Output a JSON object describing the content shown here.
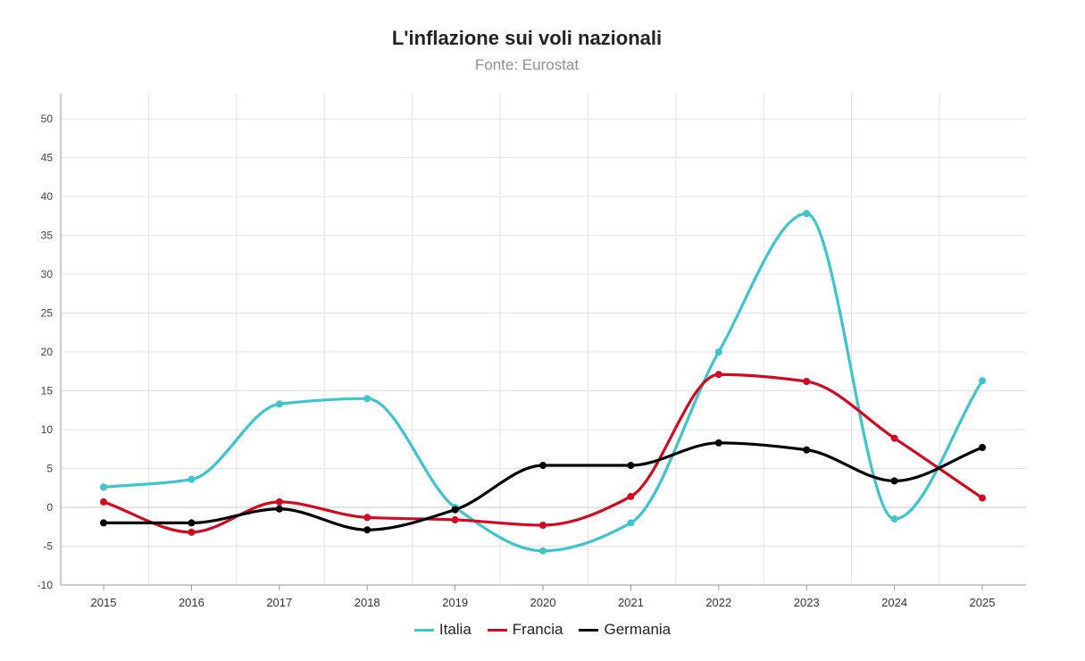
{
  "chart_data": {
    "type": "line",
    "title": "L'inflazione sui voli nazionali",
    "subtitle": "Fonte: Eurostat",
    "categories": [
      "2015",
      "2016",
      "2017",
      "2018",
      "2019",
      "2020",
      "2021",
      "2022",
      "2023",
      "2024",
      "2025"
    ],
    "ylim": [
      -10,
      50
    ],
    "yticks": [
      -10,
      -5,
      0,
      5,
      10,
      15,
      20,
      25,
      30,
      35,
      40,
      45,
      50
    ],
    "grid": true,
    "legend_position": "bottom",
    "series": [
      {
        "name": "Italia",
        "color": "#3cc6cc",
        "values": [
          2.6,
          3.6,
          13.3,
          14.0,
          0.0,
          -5.6,
          -2.0,
          20.0,
          37.8,
          -1.5,
          16.3
        ]
      },
      {
        "name": "Francia",
        "color": "#d10a22",
        "values": [
          0.7,
          -3.2,
          0.7,
          -1.3,
          -1.6,
          -2.3,
          1.4,
          17.1,
          16.2,
          8.9,
          1.2
        ]
      },
      {
        "name": "Germania",
        "color": "#000000",
        "values": [
          -2.0,
          -2.0,
          -0.2,
          -2.9,
          -0.3,
          5.4,
          5.4,
          8.3,
          7.4,
          3.4,
          7.7
        ]
      }
    ]
  }
}
